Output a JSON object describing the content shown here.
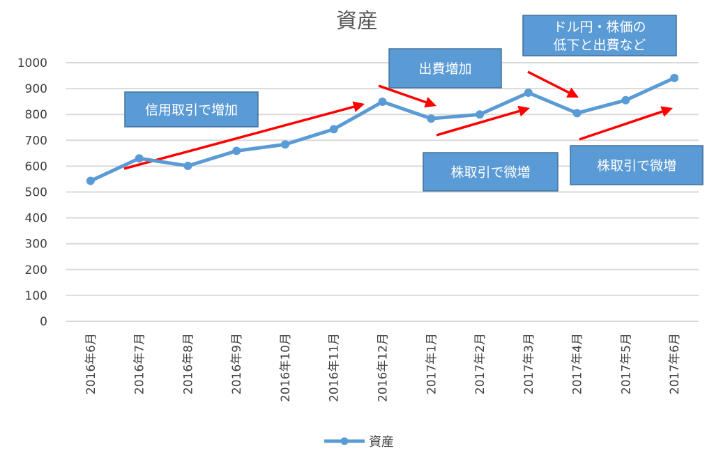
{
  "chart_data": {
    "type": "line",
    "title": "資産",
    "xlabel": "",
    "ylabel": "",
    "ylim": [
      0,
      1000
    ],
    "yticks": [
      0,
      100,
      200,
      300,
      400,
      500,
      600,
      700,
      800,
      900,
      1000
    ],
    "ytick_labels": [
      "0",
      "100",
      "200",
      "300",
      "400",
      "500",
      "600",
      "700",
      "800",
      "900",
      "1000"
    ],
    "grid": true,
    "legend": "bottom",
    "categories": [
      "2016年6月",
      "2016年7月",
      "2016年8月",
      "2016年9月",
      "2016年10月",
      "2016年11月",
      "2016年12月",
      "2017年1月",
      "2017年2月",
      "2017年3月",
      "2017年4月",
      "2017年5月",
      "2017年6月"
    ],
    "series": [
      {
        "name": "資産",
        "color": "#5b9bd5",
        "values": [
          543,
          630,
          601,
          659,
          684,
          743,
          849,
          784,
          800,
          884,
          805,
          855,
          941
        ]
      }
    ],
    "annotations": [
      {
        "lines": [
          "信用取引で増加"
        ]
      },
      {
        "lines": [
          "出費増加"
        ]
      },
      {
        "lines": [
          "ドル円・株価の",
          "低下と出費など"
        ]
      },
      {
        "lines": [
          "株取引で微増"
        ]
      },
      {
        "lines": [
          "株取引で微増"
        ]
      }
    ],
    "colors": {
      "line": "#5b9bd5",
      "box_fill": "#5b9bd5",
      "box_border": "#41719c",
      "arrow": "#ff0000",
      "grid": "#d9d9d9"
    }
  }
}
